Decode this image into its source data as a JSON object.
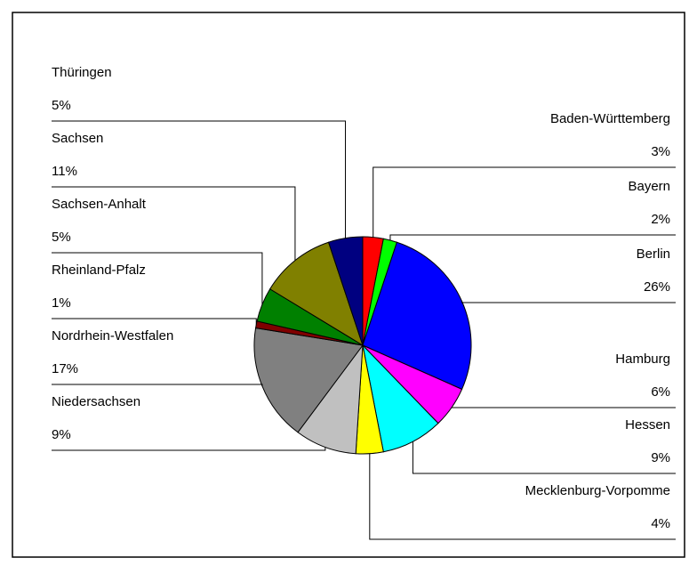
{
  "chart_data": {
    "type": "pie",
    "categories": [
      "Baden-Württemberg",
      "Bayern",
      "Berlin",
      "Hamburg",
      "Hessen",
      "Mecklenburg-Vorpomme",
      "Niedersachsen",
      "Nordrhein-Westfalen",
      "Rheinland-Pfalz",
      "Sachsen-Anhalt",
      "Sachsen",
      "Thüringen"
    ],
    "values": [
      3,
      2,
      26,
      6,
      9,
      4,
      9,
      17,
      1,
      5,
      11,
      5
    ],
    "value_labels": [
      "3%",
      "2%",
      "26%",
      "6%",
      "9%",
      "4%",
      "9%",
      "17%",
      "1%",
      "5%",
      "11%",
      "5%"
    ],
    "colors": [
      "#ff0000",
      "#00ff00",
      "#0000ff",
      "#ff00ff",
      "#00ffff",
      "#ffff00",
      "#c0c0c0",
      "#808080",
      "#800000",
      "#008000",
      "#808000",
      "#000080"
    ]
  }
}
